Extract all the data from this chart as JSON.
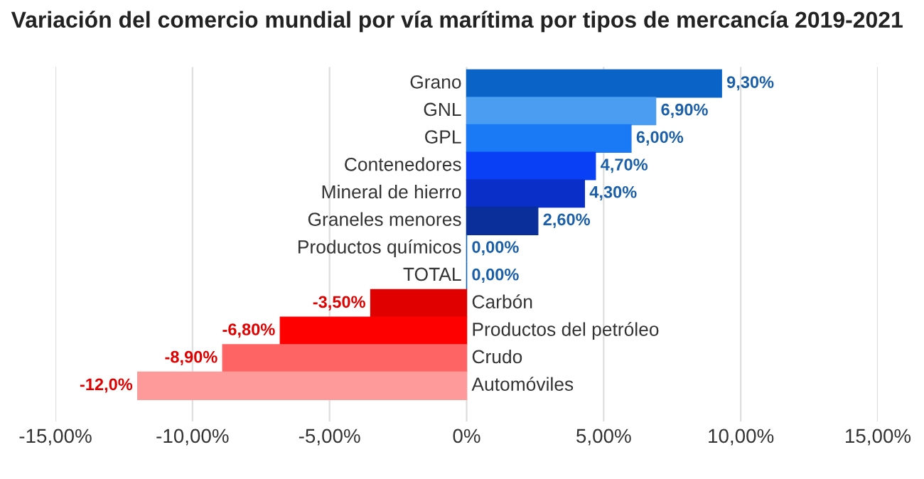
{
  "chart_data": {
    "type": "bar",
    "orientation": "horizontal",
    "title": "Variación del comercio mundial por vía marítima por tipos de mercancía 2019-2021",
    "categories": [
      "Grano",
      "GNL",
      "GPL",
      "Contenedores",
      "Mineral de hierro",
      "Graneles menores",
      "Productos químicos",
      "TOTAL",
      "Carbón",
      "Productos del petróleo",
      "Crudo",
      "Automóviles"
    ],
    "values": [
      9.3,
      6.9,
      6.0,
      4.7,
      4.3,
      2.6,
      0.0,
      0.0,
      -3.5,
      -6.8,
      -8.9,
      -12.0
    ],
    "colors": [
      "#0a64c8",
      "#4a9df0",
      "#1a7af5",
      "#0a40f5",
      "#0a2fc8",
      "#0a2f9a",
      "#0a64c8",
      "#0a64c8",
      "#e00000",
      "#ff0000",
      "#ff6464",
      "#ff9a9a"
    ],
    "value_labels": [
      "9,30%",
      "6,90%",
      "6,00%",
      "4,70%",
      "4,30%",
      "2,60%",
      "0,00%",
      "0,00%",
      "-3,50%",
      "-6,80%",
      "-8,90%",
      "-12,0%"
    ],
    "xlim": [
      -15,
      15
    ],
    "xticks": [
      {
        "value": -15,
        "label": "-15,00%"
      },
      {
        "value": -10,
        "label": "-10,00%"
      },
      {
        "value": -5,
        "label": "-5,00%"
      },
      {
        "value": 0,
        "label": "0%"
      },
      {
        "value": 5,
        "label": "5,00%"
      },
      {
        "value": 10,
        "label": "10,00%"
      },
      {
        "value": 15,
        "label": "15,00%"
      }
    ],
    "grid": "x",
    "legend": false
  }
}
